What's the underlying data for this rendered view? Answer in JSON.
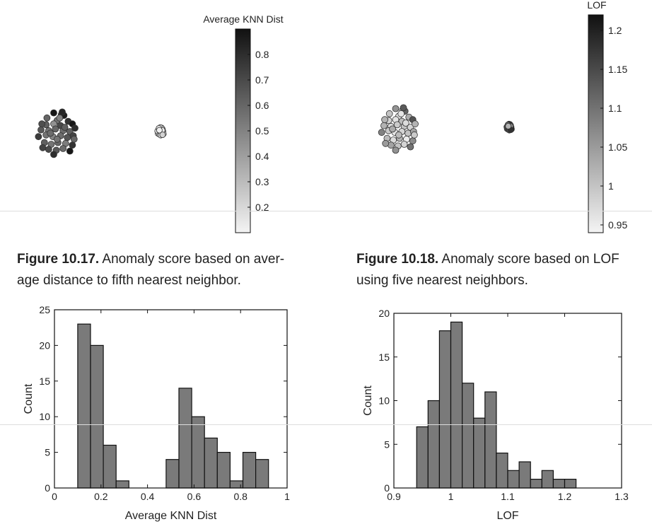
{
  "colors": {
    "point_low": "#f4f4f4",
    "point_high": "#111111",
    "point_stroke": "#333333",
    "bar_fill": "#7a7a7a",
    "bar_stroke": "#111111",
    "axis": "#111111"
  },
  "captions": [
    {
      "number": "Figure 10.17.",
      "line1": "Anomaly score based on aver-",
      "line2": "age distance to fifth nearest neighbor."
    },
    {
      "number": "Figure 10.18.",
      "line1": "Anomaly score based on LOF",
      "line2": "using five nearest neighbors."
    }
  ],
  "chart_data": [
    {
      "type": "scatter",
      "colorbar": {
        "label": "Average KNN Dist",
        "range": [
          0.1,
          0.9
        ],
        "ticks": [
          "0.2",
          "0.3",
          "0.4",
          "0.5",
          "0.6",
          "0.7",
          "0.8"
        ]
      },
      "clusters": [
        {
          "points": [
            [
              -3.0,
              2.2,
              0.88
            ],
            [
              -2.1,
              2.0,
              0.8
            ],
            [
              -1.8,
              1.9,
              0.85
            ],
            [
              -3.8,
              1.6,
              0.6
            ],
            [
              -2.6,
              1.3,
              0.55
            ],
            [
              -1.3,
              1.2,
              0.78
            ],
            [
              -0.8,
              0.9,
              0.88
            ],
            [
              -3.9,
              0.8,
              0.62
            ],
            [
              -3.0,
              0.9,
              0.45
            ],
            [
              -2.2,
              0.7,
              0.7
            ],
            [
              -4.5,
              0.2,
              0.65
            ],
            [
              -3.6,
              0.1,
              0.55
            ],
            [
              -2.8,
              0.3,
              0.6
            ],
            [
              -1.9,
              0.1,
              0.58
            ],
            [
              -1.1,
              0.0,
              0.62
            ],
            [
              -0.5,
              0.4,
              0.8
            ],
            [
              -4.8,
              -0.6,
              0.75
            ],
            [
              -3.9,
              -0.4,
              0.55
            ],
            [
              -3.1,
              -0.6,
              0.5
            ],
            [
              -2.2,
              -0.5,
              0.58
            ],
            [
              -1.4,
              -0.7,
              0.66
            ],
            [
              -0.7,
              -0.5,
              0.72
            ],
            [
              -4.1,
              -1.3,
              0.62
            ],
            [
              -3.3,
              -1.5,
              0.55
            ],
            [
              -2.5,
              -1.3,
              0.6
            ],
            [
              -1.6,
              -1.4,
              0.52
            ],
            [
              -0.8,
              -1.6,
              0.78
            ],
            [
              -3.6,
              -2.1,
              0.7
            ],
            [
              -2.7,
              -2.2,
              0.65
            ],
            [
              -1.9,
              -2.0,
              0.58
            ],
            [
              -1.1,
              -2.3,
              0.88
            ],
            [
              -3.0,
              -2.7,
              0.8
            ],
            [
              -2.0,
              2.3,
              0.82
            ],
            [
              -4.4,
              0.9,
              0.68
            ],
            [
              -0.6,
              -0.9,
              0.6
            ],
            [
              -2.3,
              1.6,
              0.5
            ],
            [
              -3.4,
              -0.2,
              0.58
            ],
            [
              -1.7,
              0.5,
              0.62
            ],
            [
              -2.6,
              -0.9,
              0.55
            ],
            [
              -4.3,
              -1.9,
              0.72
            ]
          ]
        },
        {
          "points": [
            [
              4.0,
              0.2,
              0.14
            ],
            [
              4.3,
              0.4,
              0.15
            ],
            [
              4.5,
              0.1,
              0.12
            ],
            [
              4.2,
              -0.2,
              0.16
            ],
            [
              3.9,
              -0.1,
              0.13
            ],
            [
              4.6,
              -0.3,
              0.18
            ],
            [
              4.4,
              -0.5,
              0.14
            ],
            [
              4.1,
              0.6,
              0.17
            ],
            [
              3.8,
              0.4,
              0.15
            ],
            [
              4.7,
              0.5,
              0.2
            ],
            [
              4.8,
              0.0,
              0.19
            ],
            [
              3.7,
              -0.4,
              0.16
            ],
            [
              4.0,
              -0.6,
              0.18
            ],
            [
              4.5,
              0.8,
              0.22
            ],
            [
              4.2,
              0.9,
              0.21
            ],
            [
              3.6,
              0.1,
              0.2
            ],
            [
              4.9,
              -0.5,
              0.23
            ],
            [
              4.4,
              0.2,
              0.11
            ],
            [
              4.1,
              0.1,
              0.12
            ],
            [
              4.6,
              0.3,
              0.13
            ],
            [
              3.9,
              0.7,
              0.19
            ],
            [
              4.3,
              -0.8,
              0.2
            ],
            [
              4.7,
              -0.7,
              0.22
            ],
            [
              4.0,
              0.3,
              0.11
            ]
          ]
        }
      ]
    },
    {
      "type": "scatter",
      "colorbar": {
        "label": "LOF",
        "range": [
          0.94,
          1.22
        ],
        "ticks": [
          "0.95",
          "1",
          "1.05",
          "1.1",
          "1.15",
          "1.2"
        ]
      },
      "clusters": [
        {
          "points": [
            [
              -3.0,
              2.2,
              1.06
            ],
            [
              -2.1,
              2.0,
              0.99
            ],
            [
              -1.8,
              1.9,
              1.12
            ],
            [
              -3.8,
              1.6,
              1.0
            ],
            [
              -2.6,
              1.3,
              0.97
            ],
            [
              -1.3,
              1.2,
              1.03
            ],
            [
              -0.8,
              0.9,
              1.14
            ],
            [
              -3.9,
              0.8,
              0.98
            ],
            [
              -3.0,
              0.9,
              0.96
            ],
            [
              -2.2,
              0.7,
              1.01
            ],
            [
              -4.5,
              0.2,
              1.02
            ],
            [
              -3.6,
              0.1,
              0.97
            ],
            [
              -2.8,
              0.3,
              0.99
            ],
            [
              -1.9,
              0.1,
              1.0
            ],
            [
              -1.1,
              0.0,
              0.98
            ],
            [
              -0.5,
              0.4,
              1.02
            ],
            [
              -4.8,
              -0.6,
              1.08
            ],
            [
              -3.9,
              -0.4,
              0.99
            ],
            [
              -3.1,
              -0.6,
              0.96
            ],
            [
              -2.2,
              -0.5,
              0.98
            ],
            [
              -1.4,
              -0.7,
              1.0
            ],
            [
              -0.7,
              -0.5,
              1.04
            ],
            [
              -4.1,
              -1.3,
              1.01
            ],
            [
              -3.3,
              -1.5,
              0.97
            ],
            [
              -2.5,
              -1.3,
              1.02
            ],
            [
              -1.6,
              -1.4,
              0.95
            ],
            [
              -0.8,
              -1.6,
              1.07
            ],
            [
              -3.6,
              -2.1,
              1.04
            ],
            [
              -2.7,
              -2.2,
              1.0
            ],
            [
              -1.9,
              -2.0,
              0.98
            ],
            [
              -1.1,
              -2.3,
              1.1
            ],
            [
              -3.0,
              -2.7,
              1.06
            ],
            [
              -2.0,
              2.3,
              1.13
            ],
            [
              -4.4,
              0.9,
              1.02
            ],
            [
              -0.6,
              -0.9,
              0.99
            ],
            [
              -2.3,
              1.6,
              0.96
            ],
            [
              -3.4,
              -0.2,
              1.03
            ],
            [
              -1.7,
              0.5,
              0.97
            ],
            [
              -2.6,
              -0.9,
              1.01
            ],
            [
              -4.3,
              -1.9,
              1.05
            ]
          ]
        },
        {
          "points": [
            [
              4.0,
              0.2,
              1.08
            ],
            [
              4.3,
              0.4,
              1.1
            ],
            [
              4.5,
              0.1,
              1.05
            ],
            [
              4.2,
              -0.2,
              1.12
            ],
            [
              3.9,
              -0.1,
              1.04
            ],
            [
              4.6,
              -0.3,
              1.15
            ],
            [
              4.4,
              -0.5,
              1.09
            ],
            [
              4.1,
              0.6,
              1.13
            ],
            [
              3.8,
              0.4,
              1.06
            ],
            [
              4.7,
              0.5,
              1.18
            ],
            [
              4.8,
              0.0,
              1.2
            ],
            [
              3.7,
              -0.4,
              1.11
            ],
            [
              4.0,
              -0.6,
              1.14
            ],
            [
              4.5,
              0.8,
              1.17
            ],
            [
              4.2,
              0.9,
              1.19
            ],
            [
              3.6,
              0.1,
              1.16
            ],
            [
              4.9,
              -0.5,
              1.21
            ],
            [
              4.4,
              0.2,
              1.03
            ],
            [
              4.1,
              0.1,
              1.04
            ],
            [
              4.6,
              0.3,
              1.07
            ],
            [
              3.9,
              0.7,
              1.12
            ],
            [
              4.3,
              -0.8,
              1.15
            ],
            [
              4.7,
              -0.7,
              1.18
            ],
            [
              4.0,
              0.3,
              1.02
            ]
          ]
        }
      ]
    },
    {
      "type": "bar",
      "xlabel": "Average KNN Dist",
      "ylabel": "Count",
      "xlim": [
        0,
        1
      ],
      "ylim": [
        0,
        25
      ],
      "xticks": [
        0,
        0.2,
        0.4,
        0.6,
        0.8,
        1
      ],
      "xtick_labels": [
        "0",
        "0.2",
        "0.4",
        "0.6",
        "0.8",
        "1"
      ],
      "yticks": [
        0,
        5,
        10,
        15,
        20,
        25
      ],
      "ytick_labels": [
        "0",
        "5",
        "10",
        "15",
        "20",
        "25"
      ],
      "bins": [
        {
          "x0": 0.1,
          "x1": 0.155,
          "count": 23
        },
        {
          "x0": 0.155,
          "x1": 0.21,
          "count": 20
        },
        {
          "x0": 0.21,
          "x1": 0.265,
          "count": 6
        },
        {
          "x0": 0.265,
          "x1": 0.32,
          "count": 1
        },
        {
          "x0": 0.48,
          "x1": 0.535,
          "count": 4
        },
        {
          "x0": 0.535,
          "x1": 0.59,
          "count": 14
        },
        {
          "x0": 0.59,
          "x1": 0.645,
          "count": 10
        },
        {
          "x0": 0.645,
          "x1": 0.7,
          "count": 7
        },
        {
          "x0": 0.7,
          "x1": 0.755,
          "count": 5
        },
        {
          "x0": 0.755,
          "x1": 0.81,
          "count": 1
        },
        {
          "x0": 0.81,
          "x1": 0.865,
          "count": 5
        },
        {
          "x0": 0.865,
          "x1": 0.92,
          "count": 4
        }
      ]
    },
    {
      "type": "bar",
      "xlabel": "LOF",
      "ylabel": "Count",
      "xlim": [
        0.9,
        1.3
      ],
      "ylim": [
        0,
        20
      ],
      "xticks": [
        0.9,
        1.0,
        1.1,
        1.2,
        1.3
      ],
      "xtick_labels": [
        "0.9",
        "1",
        "1.1",
        "1.2",
        "1.3"
      ],
      "yticks": [
        0,
        5,
        10,
        15,
        20
      ],
      "ytick_labels": [
        "0",
        "5",
        "10",
        "15",
        "20"
      ],
      "bins": [
        {
          "x0": 0.94,
          "x1": 0.96,
          "count": 7
        },
        {
          "x0": 0.96,
          "x1": 0.98,
          "count": 10
        },
        {
          "x0": 0.98,
          "x1": 1.0,
          "count": 18
        },
        {
          "x0": 1.0,
          "x1": 1.02,
          "count": 19
        },
        {
          "x0": 1.02,
          "x1": 1.04,
          "count": 12
        },
        {
          "x0": 1.04,
          "x1": 1.06,
          "count": 8
        },
        {
          "x0": 1.06,
          "x1": 1.08,
          "count": 11
        },
        {
          "x0": 1.08,
          "x1": 1.1,
          "count": 4
        },
        {
          "x0": 1.1,
          "x1": 1.12,
          "count": 2
        },
        {
          "x0": 1.12,
          "x1": 1.14,
          "count": 3
        },
        {
          "x0": 1.14,
          "x1": 1.16,
          "count": 1
        },
        {
          "x0": 1.16,
          "x1": 1.18,
          "count": 2
        },
        {
          "x0": 1.18,
          "x1": 1.2,
          "count": 1
        },
        {
          "x0": 1.2,
          "x1": 1.22,
          "count": 1
        }
      ]
    }
  ]
}
